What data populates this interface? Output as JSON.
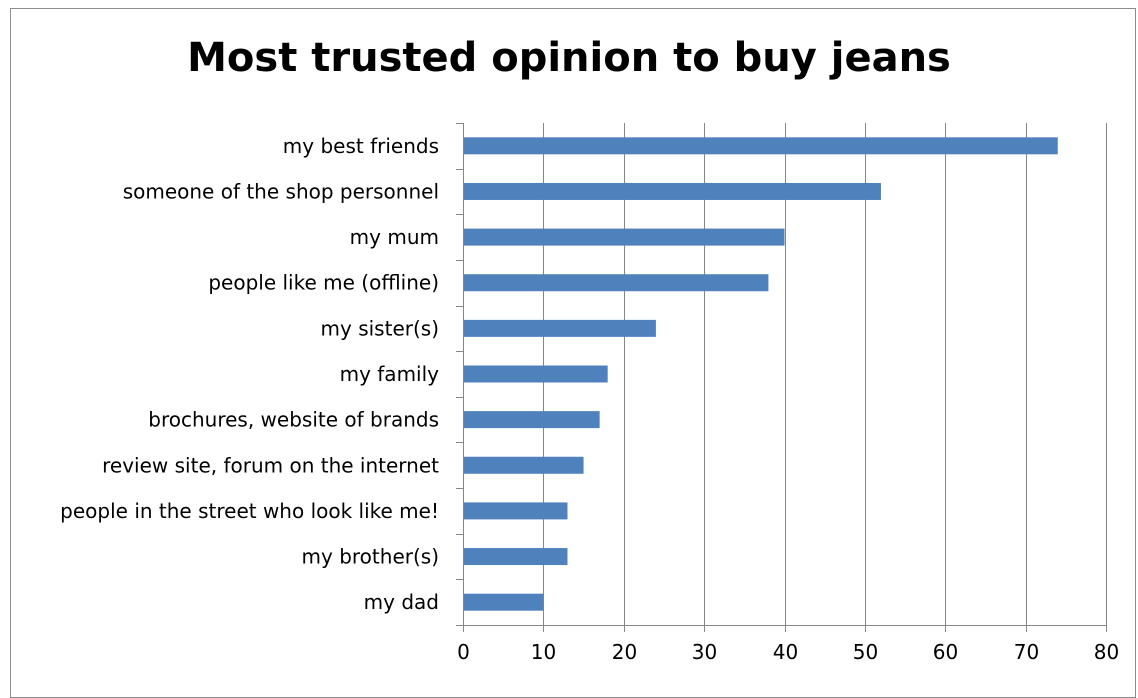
{
  "chart_data": {
    "type": "bar",
    "orientation": "horizontal",
    "title": "Most trusted opinion to buy jeans",
    "xlabel": "",
    "ylabel": "",
    "categories": [
      "my best friends",
      "someone of the shop personnel",
      "my mum",
      "people like me (offline)",
      "my sister(s)",
      "my family",
      "brochures, website of brands",
      "review site, forum on the internet",
      "people in the street who look like me!",
      "my brother(s)",
      "my dad"
    ],
    "values": [
      74,
      52,
      40,
      38,
      24,
      18,
      17,
      15,
      13,
      13,
      10
    ],
    "xlim": [
      0,
      80
    ],
    "xticks": [
      0,
      10,
      20,
      30,
      40,
      50,
      60,
      70,
      80
    ],
    "grid": "vertical",
    "legend": "none",
    "colors": {
      "bar": "#4f81bd",
      "grid": "#868686",
      "axis": "#868686",
      "text": "#000000"
    }
  }
}
